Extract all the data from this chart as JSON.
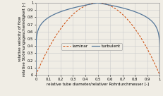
{
  "title": "",
  "xlabel": "relative tube diameter/relativer Rohrdurchmesser [-]",
  "ylabel": "relative velocity of flow\nrelative Strömungsgeschwindigkeit [-]",
  "xlim": [
    0,
    1
  ],
  "ylim": [
    0,
    1
  ],
  "xticks": [
    0,
    0.1,
    0.2,
    0.3,
    0.4,
    0.5,
    0.6,
    0.7,
    0.8,
    0.9,
    1
  ],
  "yticks": [
    0,
    0.1,
    0.2,
    0.3,
    0.4,
    0.5,
    0.6,
    0.7,
    0.8,
    0.9,
    1
  ],
  "laminar_color": "#cc4400",
  "turbulent_color": "#557799",
  "grid_color": "#cccccc",
  "background_color": "#f0ede5",
  "laminar_label": "laminar",
  "turbulent_label": "turbulent",
  "turbulent_n": 7,
  "legend_fontsize": 4.2,
  "axis_label_fontsize": 4.0,
  "tick_fontsize": 3.8,
  "fig_width": 2.31,
  "fig_height": 1.36,
  "dpi": 100
}
